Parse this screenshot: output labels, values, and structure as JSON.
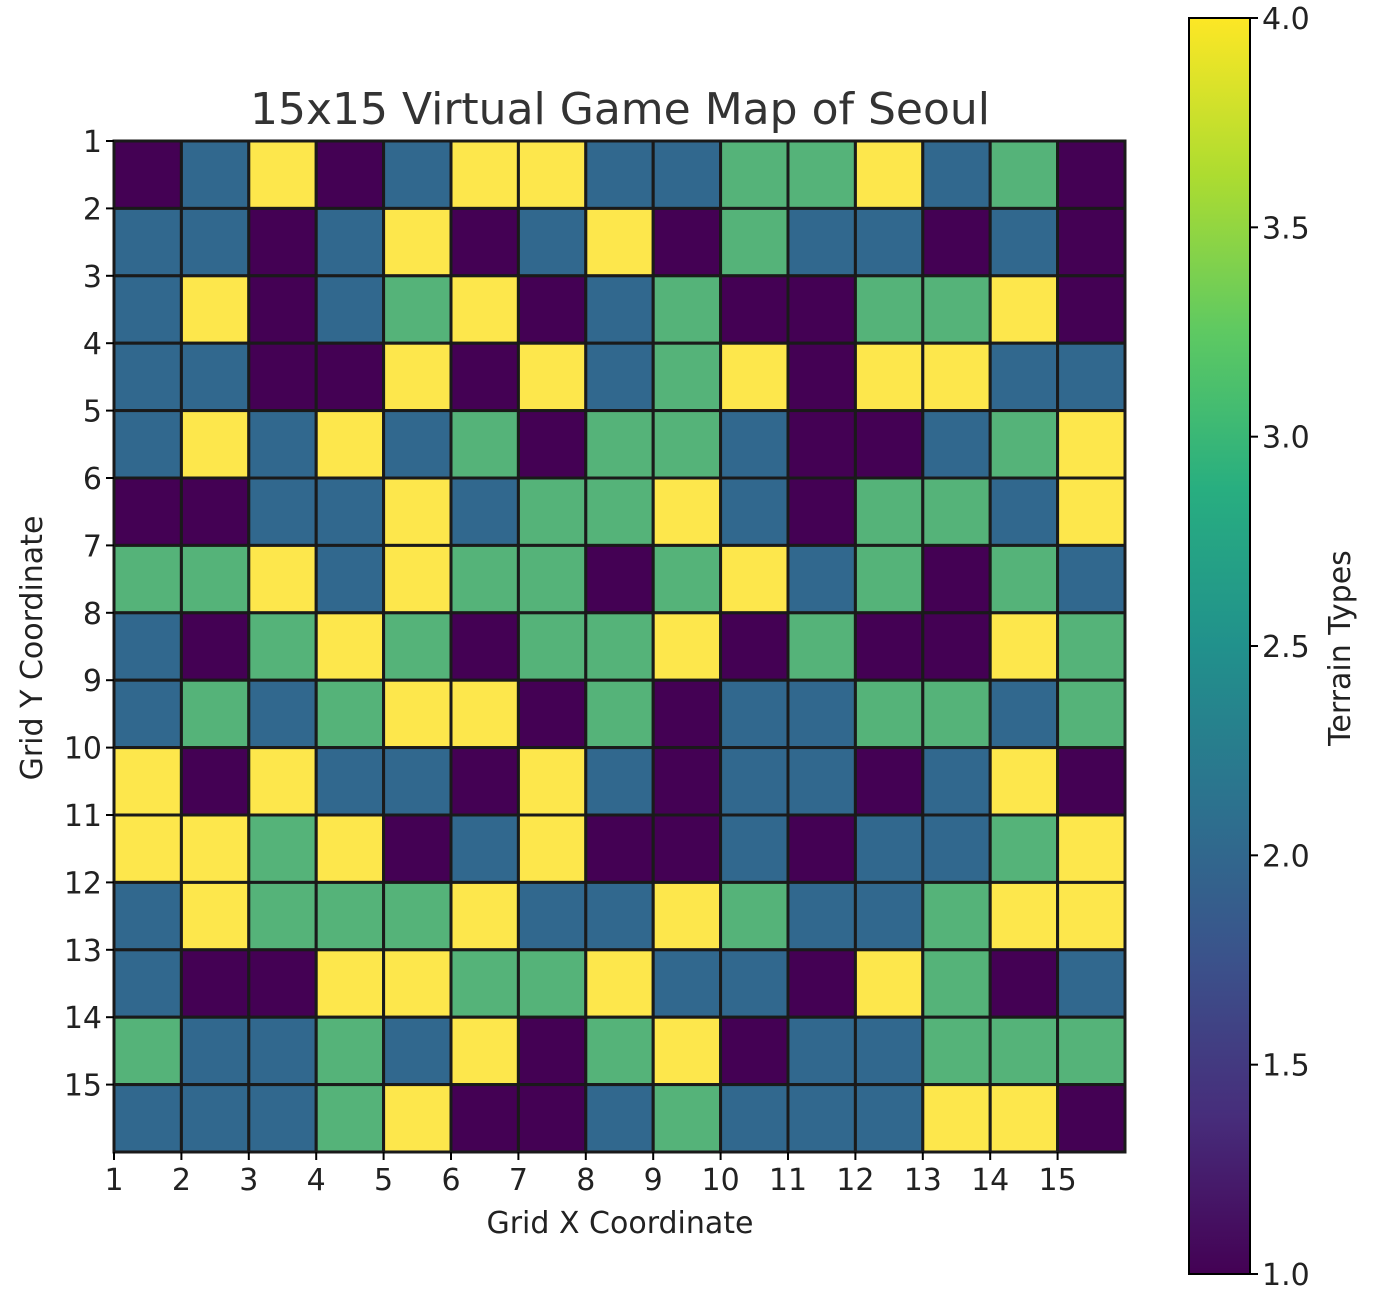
{
  "chart_data": {
    "type": "heatmap",
    "title": "15x15 Virtual Game Map of Seoul",
    "xlabel": "Grid X Coordinate",
    "ylabel": "Grid Y Coordinate",
    "x_ticks": [
      "1",
      "2",
      "3",
      "4",
      "5",
      "6",
      "7",
      "8",
      "9",
      "10",
      "11",
      "12",
      "13",
      "14",
      "15"
    ],
    "y_ticks": [
      "1",
      "2",
      "3",
      "4",
      "5",
      "6",
      "7",
      "8",
      "9",
      "10",
      "11",
      "12",
      "13",
      "14",
      "15"
    ],
    "colorbar": {
      "label": "Terrain Types",
      "min": 1.0,
      "max": 4.0,
      "ticks": [
        "1.0",
        "1.5",
        "2.0",
        "2.5",
        "3.0",
        "3.5",
        "4.0"
      ],
      "colormap": "viridis"
    },
    "grid_lines": true,
    "values": [
      [
        1,
        2,
        4,
        1,
        2,
        4,
        4,
        2,
        2,
        3,
        3,
        4,
        2,
        3,
        1
      ],
      [
        2,
        2,
        1,
        2,
        4,
        1,
        2,
        4,
        1,
        3,
        2,
        2,
        1,
        2,
        1
      ],
      [
        2,
        4,
        1,
        2,
        3,
        4,
        1,
        2,
        3,
        1,
        1,
        3,
        3,
        4,
        1
      ],
      [
        2,
        2,
        1,
        1,
        4,
        1,
        4,
        2,
        3,
        4,
        1,
        4,
        4,
        2,
        2
      ],
      [
        2,
        4,
        2,
        4,
        2,
        3,
        1,
        3,
        3,
        2,
        1,
        1,
        2,
        3,
        4
      ],
      [
        1,
        1,
        2,
        2,
        4,
        2,
        3,
        3,
        4,
        2,
        1,
        3,
        3,
        2,
        4
      ],
      [
        3,
        3,
        4,
        2,
        4,
        3,
        3,
        1,
        3,
        4,
        2,
        3,
        1,
        3,
        2
      ],
      [
        2,
        1,
        3,
        4,
        3,
        1,
        3,
        3,
        4,
        1,
        3,
        1,
        1,
        4,
        3
      ],
      [
        2,
        3,
        2,
        3,
        4,
        4,
        1,
        3,
        1,
        2,
        2,
        3,
        3,
        2,
        3
      ],
      [
        4,
        1,
        4,
        2,
        2,
        1,
        4,
        2,
        1,
        2,
        2,
        1,
        2,
        4,
        1
      ],
      [
        4,
        4,
        3,
        4,
        1,
        2,
        4,
        1,
        1,
        2,
        1,
        2,
        2,
        3,
        4
      ],
      [
        2,
        4,
        3,
        3,
        3,
        4,
        2,
        2,
        4,
        3,
        2,
        2,
        3,
        4,
        4
      ],
      [
        2,
        1,
        1,
        4,
        4,
        3,
        3,
        4,
        2,
        2,
        1,
        4,
        3,
        1,
        2
      ],
      [
        3,
        2,
        2,
        3,
        2,
        4,
        1,
        3,
        4,
        1,
        2,
        2,
        3,
        3,
        3
      ],
      [
        2,
        2,
        2,
        3,
        4,
        1,
        1,
        2,
        3,
        2,
        2,
        2,
        4,
        4,
        1
      ]
    ]
  }
}
